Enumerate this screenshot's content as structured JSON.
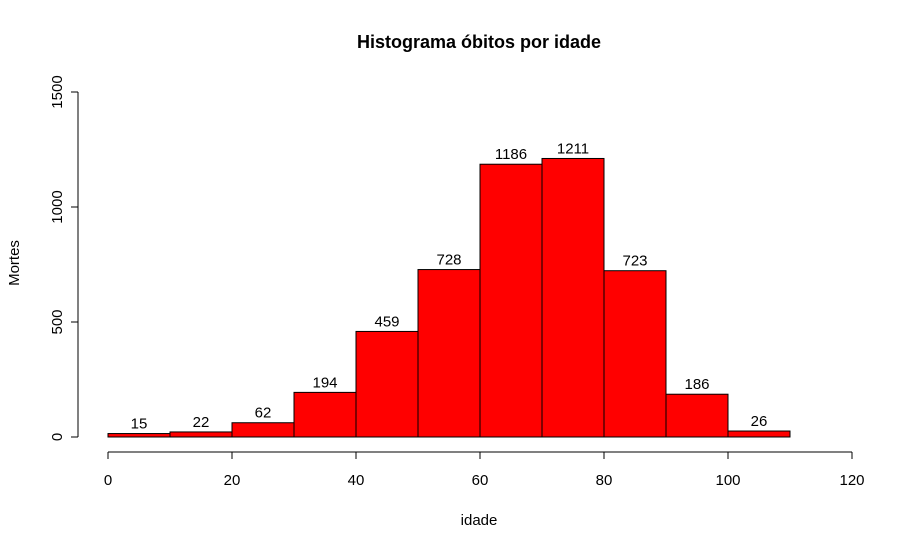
{
  "chart_data": {
    "type": "bar",
    "title": "Histograma óbitos por idade",
    "xlabel": "idade",
    "ylabel": "Mortes",
    "bins": [
      {
        "start": 0,
        "end": 10,
        "value": 15
      },
      {
        "start": 10,
        "end": 20,
        "value": 22
      },
      {
        "start": 20,
        "end": 30,
        "value": 62
      },
      {
        "start": 30,
        "end": 40,
        "value": 194
      },
      {
        "start": 40,
        "end": 50,
        "value": 459
      },
      {
        "start": 50,
        "end": 60,
        "value": 728
      },
      {
        "start": 60,
        "end": 70,
        "value": 1186
      },
      {
        "start": 70,
        "end": 80,
        "value": 1211
      },
      {
        "start": 80,
        "end": 90,
        "value": 723
      },
      {
        "start": 90,
        "end": 100,
        "value": 186
      },
      {
        "start": 100,
        "end": 110,
        "value": 26
      }
    ],
    "xlim": [
      0,
      120
    ],
    "ylim": [
      0,
      1500
    ],
    "xticks": [
      0,
      20,
      40,
      60,
      80,
      100,
      120
    ],
    "yticks": [
      0,
      500,
      1000,
      1500
    ],
    "bar_color": "#ff0000",
    "bar_border_color": "#000000",
    "grid": false,
    "legend": "none"
  }
}
